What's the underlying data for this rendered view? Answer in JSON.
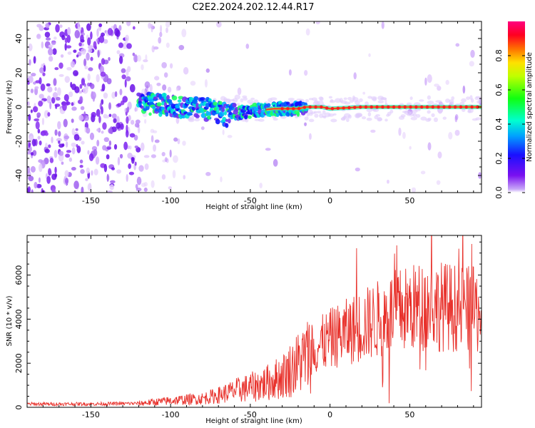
{
  "title": "C2E2.2024.202.12.44.R17",
  "colors": {
    "snr_line": "#e8312b",
    "signal_core": "#e02040",
    "noise": "#6a10e8"
  },
  "chart_data": [
    {
      "type": "heatmap",
      "title": "C2E2.2024.202.12.44.R17",
      "xlabel": "Height of straight line (km)",
      "ylabel": "Frequency (Hz)",
      "xlim": [
        -190,
        95
      ],
      "ylim": [
        -50,
        50
      ],
      "x_ticks": [
        -150,
        -100,
        -50,
        0,
        50
      ],
      "y_ticks": [
        -40,
        -20,
        0,
        20,
        40
      ],
      "x_tick_labels": [
        "-150",
        "-100",
        "-50",
        "0",
        "50"
      ],
      "y_tick_labels": [
        "-40",
        "-20",
        "0",
        "20",
        "40"
      ],
      "colorbar": {
        "label": "Normalized spectral amplitude",
        "range": [
          0.0,
          1.0
        ],
        "ticks": [
          0.0,
          0.2,
          0.4,
          0.6,
          0.8
        ],
        "tick_labels": [
          "0.0",
          "0.2",
          "0.4",
          "0.6",
          "0.8"
        ],
        "colormap": "gist_rainbow"
      },
      "signal_track": {
        "x": [
          -120,
          -100,
          -90,
          -80,
          -70,
          -65,
          -55,
          -45,
          -35,
          -25,
          -20,
          -15,
          -5,
          0,
          20,
          40,
          60,
          80,
          95
        ],
        "freq_hz": [
          2,
          1,
          0,
          -1,
          -3,
          -5,
          -3,
          -2,
          -1,
          -1,
          -1,
          0,
          0,
          -1,
          0,
          0,
          0,
          0,
          0
        ]
      }
    },
    {
      "type": "line",
      "xlabel": "Height of straight line (km)",
      "ylabel": "SNR (10 * v/v)",
      "xlim": [
        -190,
        95
      ],
      "ylim": [
        0,
        7800
      ],
      "x_ticks": [
        -150,
        -100,
        -50,
        0,
        50
      ],
      "y_ticks": [
        0,
        2000,
        4000,
        6000
      ],
      "x_tick_labels": [
        "-150",
        "-100",
        "-50",
        "0",
        "50"
      ],
      "y_tick_labels": [
        "0",
        "2000",
        "4000",
        "6000"
      ],
      "series": [
        {
          "name": "SNR",
          "x": [
            -190,
            -150,
            -120,
            -100,
            -80,
            -70,
            -60,
            -50,
            -40,
            -30,
            -25,
            -20,
            -15,
            -10,
            -5,
            0,
            10,
            20,
            30,
            40,
            50,
            60,
            70,
            80,
            90,
            95
          ],
          "values": [
            150,
            150,
            180,
            300,
            400,
            550,
            750,
            900,
            1100,
            1400,
            1700,
            2000,
            2300,
            2600,
            2900,
            3100,
            3400,
            3700,
            4000,
            4300,
            4500,
            4600,
            4600,
            4500,
            4400,
            4300
          ]
        }
      ]
    }
  ]
}
